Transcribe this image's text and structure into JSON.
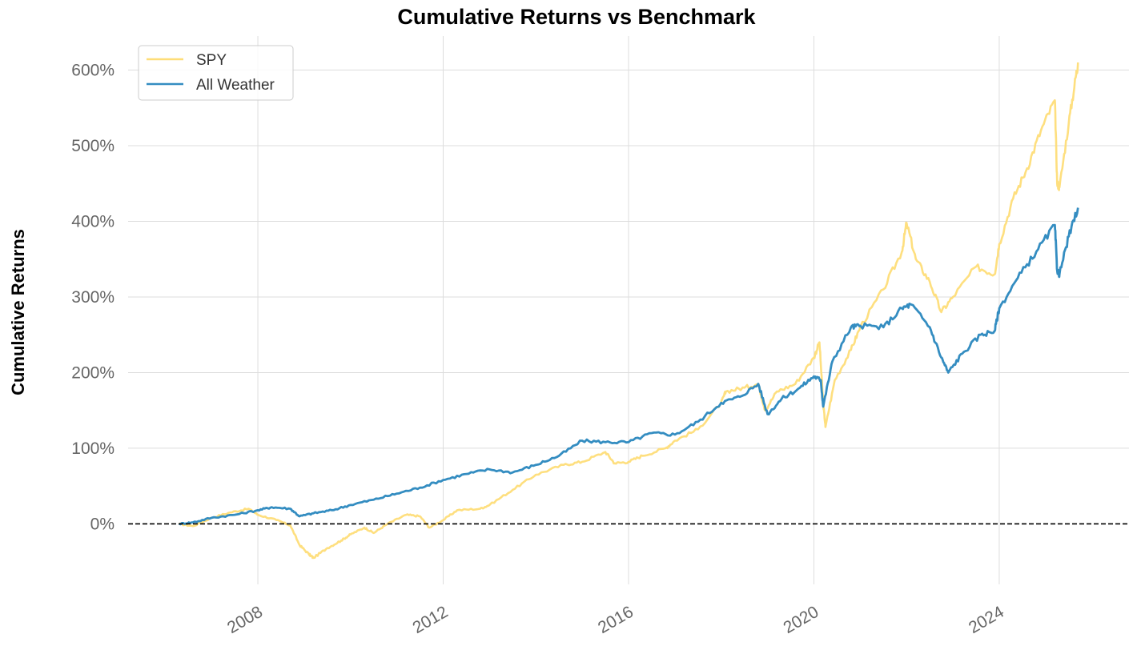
{
  "chart_data": {
    "type": "line",
    "title": "Cumulative Returns vs Benchmark",
    "xlabel": "",
    "ylabel": "Cumulative Returns",
    "x_unit": "year",
    "xlim": [
      2005.2,
      2026.8
    ],
    "ylim": [
      -80,
      645
    ],
    "x_ticks": [
      2008,
      2012,
      2016,
      2020,
      2024
    ],
    "x_tick_labels": [
      "2008",
      "2012",
      "2016",
      "2020",
      "2024"
    ],
    "y_ticks": [
      0,
      100,
      200,
      300,
      400,
      500,
      600
    ],
    "y_tick_labels": [
      "0%",
      "100%",
      "200%",
      "300%",
      "400%",
      "500%",
      "600%"
    ],
    "grid": true,
    "baseline": 0,
    "legend": {
      "position": "top-left"
    },
    "series": [
      {
        "name": "SPY",
        "color": "#fedd78",
        "points": [
          [
            2006.3,
            0
          ],
          [
            2006.6,
            -3
          ],
          [
            2007.0,
            8
          ],
          [
            2007.4,
            15
          ],
          [
            2007.8,
            20
          ],
          [
            2008.0,
            12
          ],
          [
            2008.4,
            5
          ],
          [
            2008.7,
            -2
          ],
          [
            2008.9,
            -28
          ],
          [
            2009.1,
            -40
          ],
          [
            2009.2,
            -45
          ],
          [
            2009.5,
            -32
          ],
          [
            2009.8,
            -22
          ],
          [
            2010.0,
            -14
          ],
          [
            2010.3,
            -5
          ],
          [
            2010.5,
            -12
          ],
          [
            2010.8,
            0
          ],
          [
            2011.2,
            12
          ],
          [
            2011.5,
            10
          ],
          [
            2011.7,
            -5
          ],
          [
            2012.0,
            5
          ],
          [
            2012.3,
            18
          ],
          [
            2012.8,
            20
          ],
          [
            2013.0,
            25
          ],
          [
            2013.5,
            45
          ],
          [
            2014.0,
            65
          ],
          [
            2014.6,
            78
          ],
          [
            2015.0,
            82
          ],
          [
            2015.5,
            95
          ],
          [
            2015.7,
            80
          ],
          [
            2016.0,
            82
          ],
          [
            2016.3,
            90
          ],
          [
            2016.8,
            100
          ],
          [
            2017.0,
            110
          ],
          [
            2017.5,
            125
          ],
          [
            2018.0,
            160
          ],
          [
            2018.1,
            175
          ],
          [
            2018.5,
            180
          ],
          [
            2018.8,
            185
          ],
          [
            2018.95,
            150
          ],
          [
            2019.2,
            175
          ],
          [
            2019.6,
            185
          ],
          [
            2020.0,
            220
          ],
          [
            2020.12,
            240
          ],
          [
            2020.2,
            160
          ],
          [
            2020.25,
            128
          ],
          [
            2020.45,
            190
          ],
          [
            2020.8,
            230
          ],
          [
            2021.0,
            260
          ],
          [
            2021.5,
            310
          ],
          [
            2021.9,
            360
          ],
          [
            2022.0,
            398
          ],
          [
            2022.2,
            350
          ],
          [
            2022.5,
            320
          ],
          [
            2022.75,
            280
          ],
          [
            2023.0,
            300
          ],
          [
            2023.5,
            340
          ],
          [
            2023.9,
            330
          ],
          [
            2024.0,
            370
          ],
          [
            2024.3,
            430
          ],
          [
            2024.6,
            470
          ],
          [
            2024.9,
            520
          ],
          [
            2025.2,
            560
          ],
          [
            2025.25,
            450
          ],
          [
            2025.3,
            445
          ],
          [
            2025.5,
            530
          ],
          [
            2025.65,
            590
          ],
          [
            2025.7,
            610
          ]
        ]
      },
      {
        "name": "All Weather",
        "color": "#348dc1",
        "points": [
          [
            2006.3,
            0
          ],
          [
            2006.6,
            2
          ],
          [
            2007.0,
            8
          ],
          [
            2007.5,
            12
          ],
          [
            2008.0,
            18
          ],
          [
            2008.3,
            22
          ],
          [
            2008.7,
            20
          ],
          [
            2008.9,
            10
          ],
          [
            2009.2,
            14
          ],
          [
            2009.6,
            18
          ],
          [
            2010.0,
            25
          ],
          [
            2010.5,
            32
          ],
          [
            2011.0,
            40
          ],
          [
            2011.5,
            48
          ],
          [
            2012.0,
            58
          ],
          [
            2012.5,
            66
          ],
          [
            2013.0,
            72
          ],
          [
            2013.5,
            68
          ],
          [
            2014.0,
            78
          ],
          [
            2014.5,
            90
          ],
          [
            2015.0,
            110
          ],
          [
            2015.5,
            108
          ],
          [
            2016.0,
            108
          ],
          [
            2016.5,
            120
          ],
          [
            2017.0,
            118
          ],
          [
            2017.5,
            135
          ],
          [
            2018.0,
            160
          ],
          [
            2018.4,
            168
          ],
          [
            2018.8,
            185
          ],
          [
            2019.0,
            145
          ],
          [
            2019.3,
            165
          ],
          [
            2019.7,
            180
          ],
          [
            2020.0,
            195
          ],
          [
            2020.15,
            190
          ],
          [
            2020.2,
            155
          ],
          [
            2020.4,
            215
          ],
          [
            2020.8,
            260
          ],
          [
            2021.0,
            262
          ],
          [
            2021.5,
            260
          ],
          [
            2021.9,
            285
          ],
          [
            2022.1,
            290
          ],
          [
            2022.5,
            260
          ],
          [
            2022.75,
            220
          ],
          [
            2022.9,
            200
          ],
          [
            2023.2,
            225
          ],
          [
            2023.6,
            250
          ],
          [
            2023.9,
            255
          ],
          [
            2024.0,
            285
          ],
          [
            2024.4,
            325
          ],
          [
            2024.8,
            360
          ],
          [
            2025.2,
            395
          ],
          [
            2025.25,
            335
          ],
          [
            2025.3,
            330
          ],
          [
            2025.5,
            380
          ],
          [
            2025.7,
            418
          ]
        ]
      }
    ]
  }
}
